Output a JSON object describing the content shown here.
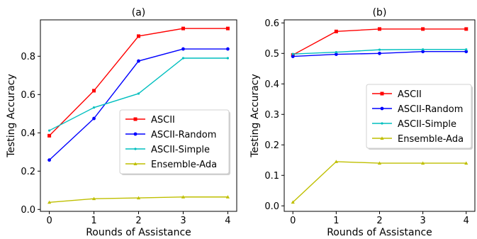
{
  "chart_data": [
    {
      "type": "line",
      "title": "(a)",
      "xlabel": "Rounds of Assistance",
      "ylabel": "Testing Accuracy",
      "x": [
        0,
        1,
        2,
        3,
        4
      ],
      "xlim": [
        -0.2,
        4.2
      ],
      "ylim": [
        -0.01,
        0.99
      ],
      "xticks": [
        "0",
        "1",
        "2",
        "3",
        "4"
      ],
      "yticks": [
        "0.0",
        "0.2",
        "0.4",
        "0.6",
        "0.8"
      ],
      "legend_position": "center-right",
      "grid": false,
      "series": [
        {
          "name": "ASCII",
          "color": "#ff0000",
          "marker": "square",
          "values": [
            0.385,
            0.62,
            0.905,
            0.945,
            0.945
          ]
        },
        {
          "name": "ASCII-Random",
          "color": "#0000ff",
          "marker": "circle",
          "values": [
            0.258,
            0.475,
            0.775,
            0.838,
            0.838
          ]
        },
        {
          "name": "ASCII-Simple",
          "color": "#00bfbf",
          "marker": "dot",
          "values": [
            0.412,
            0.532,
            0.605,
            0.79,
            0.79
          ]
        },
        {
          "name": "Ensemble-Ada",
          "color": "#bfbf00",
          "marker": "triangle",
          "values": [
            0.037,
            0.056,
            0.06,
            0.065,
            0.065
          ]
        }
      ]
    },
    {
      "type": "line",
      "title": "(b)",
      "xlabel": "Rounds of Assistance",
      "ylabel": "Testing Accuracy",
      "x": [
        0,
        1,
        2,
        3,
        4
      ],
      "xlim": [
        -0.2,
        4.2
      ],
      "ylim": [
        -0.018,
        0.61
      ],
      "xticks": [
        "0",
        "1",
        "2",
        "3",
        "4"
      ],
      "yticks": [
        "0.0",
        "0.1",
        "0.2",
        "0.3",
        "0.4",
        "0.5",
        "0.6"
      ],
      "legend_position": "center-right",
      "grid": false,
      "series": [
        {
          "name": "ASCII",
          "color": "#ff0000",
          "marker": "square",
          "values": [
            0.495,
            0.572,
            0.58,
            0.58,
            0.58
          ]
        },
        {
          "name": "ASCII-Random",
          "color": "#0000ff",
          "marker": "circle",
          "values": [
            0.49,
            0.497,
            0.5,
            0.506,
            0.506
          ]
        },
        {
          "name": "ASCII-Simple",
          "color": "#00bfbf",
          "marker": "dot",
          "values": [
            0.498,
            0.504,
            0.512,
            0.513,
            0.513
          ]
        },
        {
          "name": "Ensemble-Ada",
          "color": "#bfbf00",
          "marker": "triangle",
          "values": [
            0.012,
            0.145,
            0.14,
            0.14,
            0.14
          ]
        }
      ]
    }
  ]
}
